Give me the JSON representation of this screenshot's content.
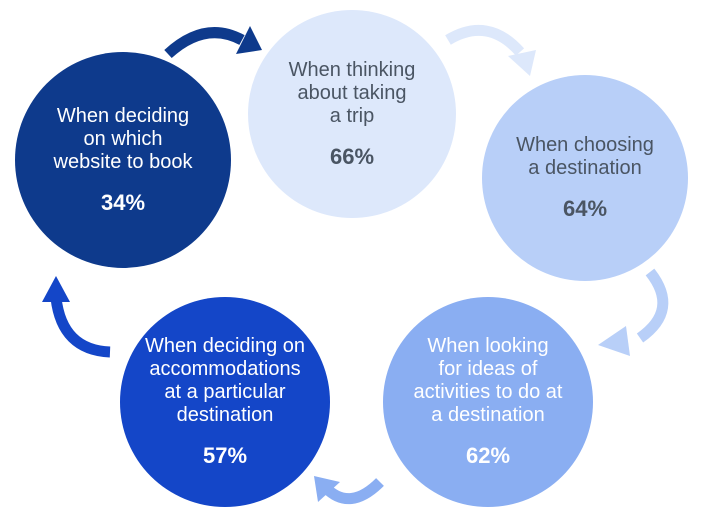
{
  "steps": [
    {
      "id": "trip",
      "label": "When thinking\nabout taking\na trip",
      "value": "66%",
      "color": "#dde8fb",
      "text_color": "#4a5563"
    },
    {
      "id": "destination",
      "label": "When choosing\na destination",
      "value": "64%",
      "color": "#b8cff8",
      "text_color": "#4a5563"
    },
    {
      "id": "ideas",
      "label": "When looking\nfor ideas of\nactivities to do at\na destination",
      "value": "62%",
      "color": "#8aaef2",
      "text_color": "#ffffff"
    },
    {
      "id": "accommodations",
      "label": "When deciding on\naccommodations\nat a particular\ndestination",
      "value": "57%",
      "color": "#1446c8",
      "text_color": "#ffffff"
    },
    {
      "id": "website",
      "label": "When deciding\non which\nwebsite to book",
      "value": "34%",
      "color": "#0e3a8c",
      "text_color": "#ffffff"
    }
  ],
  "arrow_colors": {
    "website_to_trip": "#0e3a8c",
    "trip_to_destination": "#dde8fb",
    "destination_to_ideas": "#b8cff8",
    "ideas_to_accommodations": "#8aaef2",
    "accommodations_to_website": "#1446c8"
  }
}
